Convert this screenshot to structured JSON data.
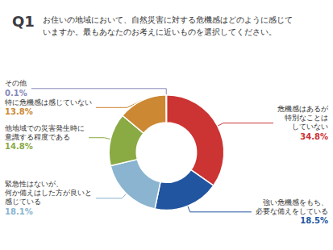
{
  "chart_data": {
    "type": "donut",
    "title": "Q1",
    "subtitle": "お住いの地域において、自然災害に対する危機感はどのように感じて\nいますか。最もあなたのお考えに近いものを選択してください。",
    "categories": [
      "危機感はあるが\n特別なことは\nしていない",
      "強い危機感をもち、\n必要な備えをしている",
      "緊急性はないが、\n何か備えはした方が良いと\n感じている",
      "他地域での災害発生時に\n意識する程度である",
      "特に危機感は感じていない",
      "その他"
    ],
    "values": [
      34.8,
      18.5,
      18.1,
      14.8,
      13.8,
      0.1
    ],
    "value_labels": [
      "34.8%",
      "18.5%",
      "18.1%",
      "14.8%",
      "13.8%",
      "0.1%"
    ],
    "colors": [
      "#cc3333",
      "#2255a0",
      "#8ab4d0",
      "#8aaa44",
      "#cc8833",
      "#8888bb"
    ],
    "data_labels": true
  }
}
